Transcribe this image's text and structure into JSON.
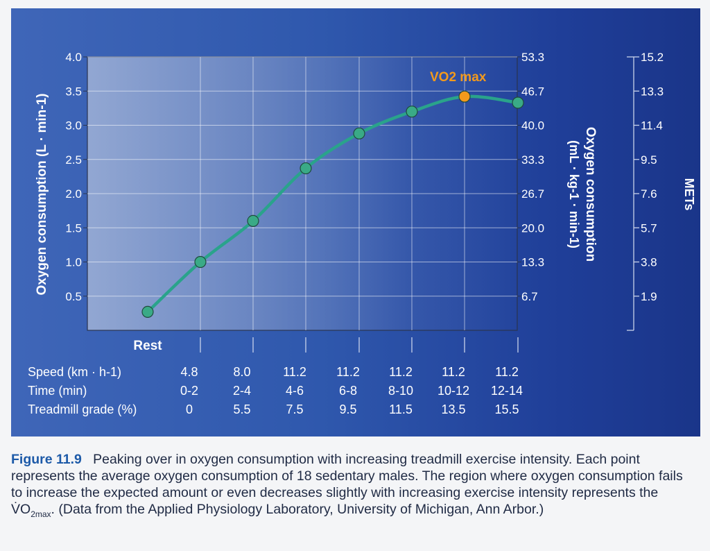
{
  "chart_data": {
    "type": "line",
    "x": [
      "Rest",
      "0-2",
      "2-4",
      "4-6",
      "6-8",
      "8-10",
      "10-12",
      "12-14"
    ],
    "values": [
      0.27,
      1.0,
      1.6,
      2.37,
      2.88,
      3.2,
      3.42,
      3.33
    ],
    "series": [
      {
        "name": "",
        "values": [
          0.27,
          1.0,
          1.6,
          2.37,
          2.88,
          3.2,
          3.42,
          3.33
        ]
      }
    ],
    "highlight_index": 6,
    "highlight_label": "VO2 max",
    "ylabel": "Oxygen consumption (L · min-1)",
    "ylim": [
      0,
      4.0
    ],
    "y_ticks": [
      "0.5",
      "1.0",
      "1.5",
      "2.0",
      "2.5",
      "3.0",
      "3.5",
      "4.0"
    ],
    "y2label_line1": "Oxygen consumption",
    "y2label_line2": "(mL · kg-1 · min-1)",
    "y2_ticks": [
      "6.7",
      "13.3",
      "20.0",
      "26.7",
      "33.3",
      "40.0",
      "46.7",
      "53.3"
    ],
    "y3label": "METs",
    "y3_ticks": [
      "1.9",
      "3.8",
      "5.7",
      "7.6",
      "9.5",
      "11.4",
      "13.3",
      "15.2"
    ],
    "rest_label": "Rest",
    "table": {
      "row_labels": [
        "Speed (km · h-1)",
        "Time (min)",
        "Treadmill grade (%)"
      ],
      "speed": [
        "4.8",
        "8.0",
        "11.2",
        "11.2",
        "11.2",
        "11.2",
        "11.2"
      ],
      "time": [
        "0-2",
        "2-4",
        "4-6",
        "6-8",
        "8-10",
        "10-12",
        "12-14"
      ],
      "grade": [
        "0",
        "5.5",
        "7.5",
        "9.5",
        "11.5",
        "13.5",
        "15.5"
      ]
    },
    "grid": true,
    "colors": {
      "line": "#2aa38b",
      "point": "#3aaa86",
      "highlight": "#f39a1c",
      "text": "#ffffff"
    }
  },
  "caption": {
    "label": "Figure 11.9",
    "title": "Peaking over in oxygen consumption with increasing treadmill exercise intensity.",
    "body_before": "Each point represents the average oxygen consumption of 18 sedentary males. The region where oxygen consumption fails to increase the expected amount or even decreases slightly with increasing exercise intensity represents the V̇O",
    "body_sub": "2max",
    "body_after": ". (Data from the Applied Physiology Laboratory, University of Michigan, Ann Arbor.)"
  }
}
